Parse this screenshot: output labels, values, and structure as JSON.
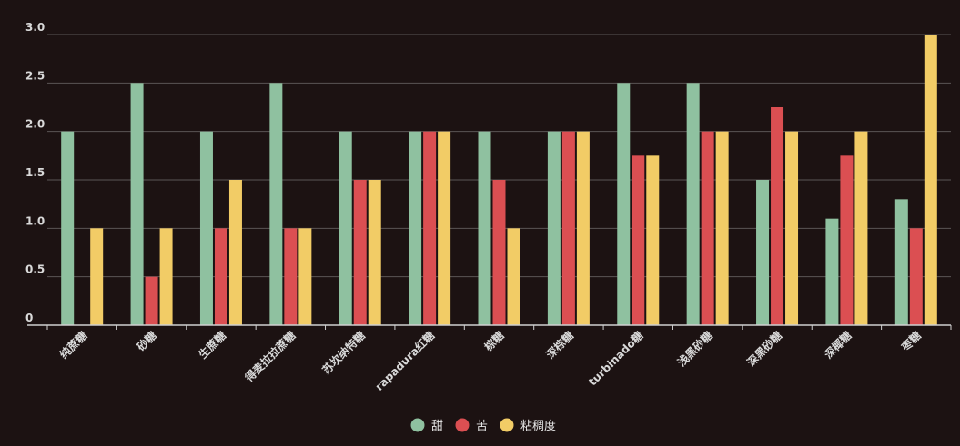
{
  "chart_data": {
    "type": "bar",
    "categories": [
      "纯蔗糖",
      "砂糖",
      "生蔗糖",
      "得麦拉拉蔗糖",
      "苏坎纳特糖",
      "rapadura红糖",
      "棕糖",
      "深棕糖",
      "turbinado糖",
      "浅黑砂糖",
      "深黑砂糖",
      "深椰糖",
      "枣糖"
    ],
    "series": [
      {
        "name": "甜",
        "color": "#8fc1a0",
        "values": [
          2.0,
          2.5,
          2.0,
          2.5,
          2.0,
          2.0,
          2.0,
          2.0,
          2.5,
          2.5,
          1.5,
          1.1,
          1.3
        ]
      },
      {
        "name": "苦",
        "color": "#db4f52",
        "values": [
          0,
          0.5,
          1.0,
          1.0,
          1.5,
          2.0,
          1.5,
          2.0,
          1.75,
          2.0,
          2.25,
          1.75,
          1.0
        ]
      },
      {
        "name": "粘稠度",
        "color": "#f2cc66",
        "values": [
          1.0,
          1.0,
          1.5,
          1.0,
          1.5,
          2.0,
          1.0,
          2.0,
          1.75,
          2.0,
          2.0,
          2.0,
          3.0
        ]
      }
    ],
    "yticks": [
      "0",
      "0.5",
      "1.0",
      "1.5",
      "2.0",
      "2.5",
      "3.0"
    ],
    "ylim": [
      0,
      3.0
    ],
    "grid": true,
    "legend_position": "bottom-center"
  },
  "style": {
    "background": "#1c1212",
    "grid_color": "#5a5555",
    "axis_color": "#cfcfcf",
    "text_color": "#d9d9d9"
  }
}
